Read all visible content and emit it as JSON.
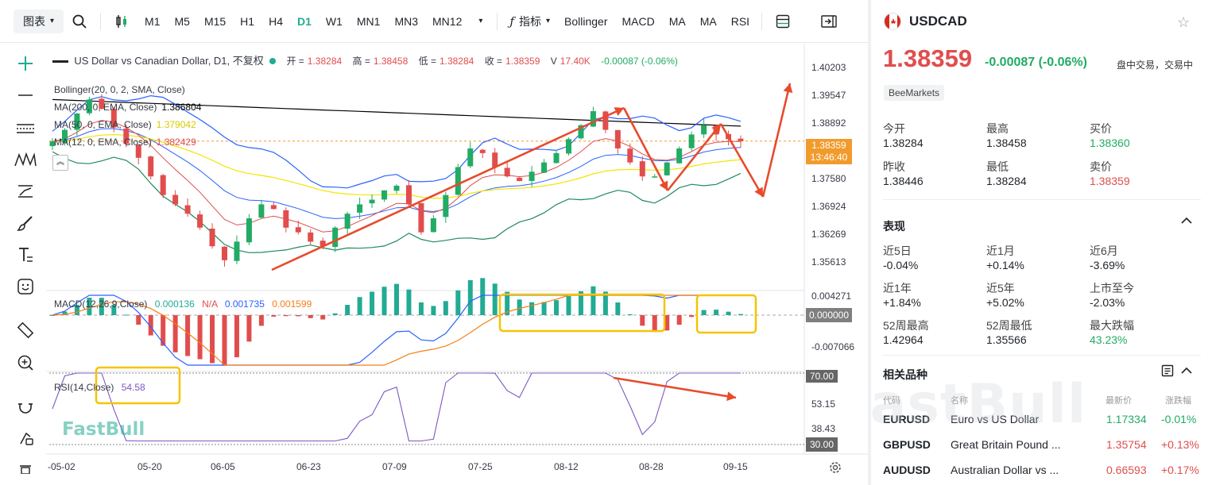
{
  "toolbar": {
    "chart_type": "图表",
    "timeframes": [
      "M1",
      "M5",
      "M15",
      "H1",
      "H4",
      "D1",
      "W1",
      "MN1",
      "MN3",
      "MN12"
    ],
    "active_timeframe": "D1",
    "indicators_label": "指标",
    "indicator_buttons": [
      "Bollinger",
      "MACD",
      "MA",
      "MA",
      "RSI"
    ]
  },
  "legend": {
    "title": "US Dollar vs Canadian Dollar, D1, 不复权",
    "open_label": "开 =",
    "open": "1.38284",
    "high_label": "高 =",
    "high": "1.38458",
    "low_label": "低 =",
    "low": "1.38284",
    "close_label": "收 =",
    "close": "1.38359",
    "vol_label": "V",
    "vol": "17.40K",
    "change": "-0.00087 (-0.06%)",
    "bollinger": "Bollinger(20, 0, 2, SMA, Close)",
    "ma200": "MA(200, 0, EMA, Close)",
    "ma200_val": "1.386804",
    "ma50": "MA(50, 0, EMA, Close)",
    "ma50_val": "1.379042",
    "ma12": "MA(12, 0, EMA, Close)",
    "ma12_val": "1.382429",
    "macd": "MACD(12,26,9,Close)",
    "macd_v1": "0.000136",
    "macd_v2": "N/A",
    "macd_v3": "0.001735",
    "macd_v4": "0.001599",
    "rsi": "RSI(14,Close)",
    "rsi_val": "54.58"
  },
  "price_axis": [
    "1.40203",
    "1.39547",
    "1.38892",
    "1.38359",
    "1.37580",
    "1.36924",
    "1.36269",
    "1.35613"
  ],
  "price_tag": {
    "price": "1.38359",
    "time": "13:46:40"
  },
  "macd_axis": {
    "top": "0.004271",
    "zero": "0.000000",
    "bottom": "-0.007066"
  },
  "rsi_axis": {
    "upper": "70.00",
    "mid1": "53.15",
    "mid2": "38.43",
    "lower": "30.00"
  },
  "date_axis": [
    "-05-02",
    "05-20",
    "06-05",
    "06-23",
    "07-09",
    "07-25",
    "08-12",
    "08-28",
    "09-15"
  ],
  "watermark": "FastBull",
  "colors": {
    "up": "#22ab64",
    "down": "#e14d4d",
    "boll": "#2962ff",
    "ma200": "#000000",
    "ma50": "#f2e600",
    "ma12": "#e14d4d",
    "annot": "#e84a2c",
    "box": "#f5c400",
    "rsi": "#7e57c2"
  },
  "chart_data": {
    "type": "candlestick",
    "symbol": "USDCAD",
    "timeframe": "D1",
    "ylim": [
      1.3515,
      1.4045
    ],
    "x_ticks": [
      "-05-02",
      "05-20",
      "06-05",
      "06-23",
      "07-09",
      "07-25",
      "08-12",
      "08-28",
      "09-15"
    ],
    "approx_close_path": [
      1.3835,
      1.386,
      1.3895,
      1.3925,
      1.3905,
      1.3865,
      1.383,
      1.38,
      1.376,
      1.372,
      1.37,
      1.368,
      1.365,
      1.361,
      1.358,
      1.362,
      1.367,
      1.37,
      1.369,
      1.365,
      1.364,
      1.362,
      1.361,
      1.365,
      1.368,
      1.37,
      1.371,
      1.373,
      1.374,
      1.37,
      1.364,
      1.367,
      1.372,
      1.378,
      1.382,
      1.381,
      1.378,
      1.376,
      1.375,
      1.377,
      1.379,
      1.381,
      1.384,
      1.387,
      1.39,
      1.386,
      1.382,
      1.379,
      1.376,
      1.376,
      1.379,
      1.382,
      1.385,
      1.387,
      1.385,
      1.384,
      1.3836
    ],
    "last": {
      "open": 1.38284,
      "high": 1.38458,
      "low": 1.38284,
      "close": 1.38359
    },
    "macd": {
      "macd": 0.000136,
      "signal": 0.001735,
      "hist": 0.001599,
      "ylim": [
        -0.007066,
        0.004271
      ]
    },
    "rsi": {
      "value": 54.58,
      "levels": [
        70,
        30
      ]
    }
  },
  "side": {
    "symbol": "USDCAD",
    "price": "1.38359",
    "change": "-0.00087 (-0.06%)",
    "status": "盘中交易，交易中",
    "source": "BeeMarkets",
    "stats": [
      {
        "label": "今开",
        "value": "1.38284"
      },
      {
        "label": "最高",
        "value": "1.38458"
      },
      {
        "label": "买价",
        "value": "1.38360"
      },
      {
        "label": "昨收",
        "value": "1.38446"
      },
      {
        "label": "最低",
        "value": "1.38284"
      },
      {
        "label": "卖价",
        "value": "1.38359"
      }
    ],
    "perf_title": "表现",
    "perf": [
      {
        "label": "近5日",
        "value": "-0.04%"
      },
      {
        "label": "近1月",
        "value": "+0.14%"
      },
      {
        "label": "近6月",
        "value": "-3.69%"
      },
      {
        "label": "近1年",
        "value": "+1.84%"
      },
      {
        "label": "近5年",
        "value": "+5.02%"
      },
      {
        "label": "上市至今",
        "value": "-2.03%"
      },
      {
        "label": "52周最高",
        "value": "1.42964"
      },
      {
        "label": "52周最低",
        "value": "1.35566"
      },
      {
        "label": "最大跌幅",
        "value": "43.23%"
      }
    ],
    "related_title": "相关品种",
    "related_headers": [
      "代码",
      "名称",
      "最新价",
      "涨跌幅"
    ],
    "related": [
      {
        "code": "EURUSD",
        "name": "Euro vs US Dollar",
        "price": "1.17334",
        "chg": "-0.01%"
      },
      {
        "code": "GBPUSD",
        "name": "Great Britain Pound ...",
        "price": "1.35754",
        "chg": "+0.13%"
      },
      {
        "code": "AUDUSD",
        "name": "Australian Dollar vs ...",
        "price": "0.66593",
        "chg": "+0.17%"
      }
    ],
    "watermark": "FastBull"
  }
}
